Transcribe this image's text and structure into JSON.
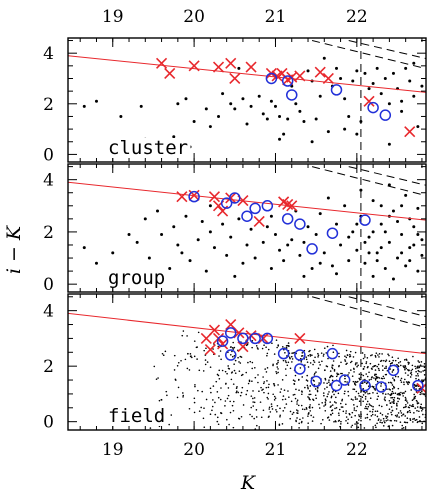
{
  "chart_data": {
    "type": "scatter",
    "xlabel": "K",
    "ylabel": "i − K",
    "xlim": [
      18.45,
      22.85
    ],
    "ylim": [
      -0.3,
      4.6
    ],
    "x_ticks": [
      19,
      20,
      21,
      22
    ],
    "x_tick_labels": [
      "19",
      "20",
      "21",
      "22"
    ],
    "y_ticks": [
      0,
      2,
      4
    ],
    "y_tick_labels": [
      "0",
      "2",
      "4"
    ],
    "ticks_top": true,
    "colors": {
      "cross": "#e8282d",
      "circle": "#2230d8",
      "line": "#e8282d",
      "dots": "#000000",
      "limit": "#000000"
    },
    "vertical_cut_K": 22.05,
    "red_sequence_line": {
      "x0": 18.45,
      "y0": 3.9,
      "x1": 22.85,
      "y1": 2.45
    },
    "panels": [
      {
        "label": "cluster",
        "crosses": [
          [
            19.6,
            3.6
          ],
          [
            19.7,
            3.2
          ],
          [
            20.0,
            3.5
          ],
          [
            20.3,
            3.45
          ],
          [
            20.45,
            3.6
          ],
          [
            20.5,
            3.0
          ],
          [
            20.7,
            3.45
          ],
          [
            20.95,
            3.2
          ],
          [
            21.02,
            3.1
          ],
          [
            21.08,
            3.2
          ],
          [
            21.15,
            2.95
          ],
          [
            21.2,
            3.05
          ],
          [
            21.3,
            3.1
          ],
          [
            21.55,
            3.25
          ],
          [
            21.65,
            3.0
          ],
          [
            22.15,
            2.1
          ],
          [
            22.65,
            0.9
          ]
        ],
        "circles": [
          [
            20.95,
            3.0
          ],
          [
            21.15,
            2.9
          ],
          [
            21.2,
            2.35
          ],
          [
            21.75,
            2.55
          ],
          [
            22.2,
            1.85
          ],
          [
            22.35,
            1.55
          ]
        ],
        "dots": [
          [
            18.65,
            1.9
          ],
          [
            18.8,
            2.1
          ],
          [
            19.1,
            1.5
          ],
          [
            19.35,
            1.9
          ],
          [
            19.4,
            0.6
          ],
          [
            19.75,
            0.7
          ],
          [
            19.9,
            2.2
          ],
          [
            19.95,
            0.3
          ],
          [
            20.0,
            1.3
          ],
          [
            20.15,
            1.8
          ],
          [
            20.2,
            1.1
          ],
          [
            20.3,
            1.5
          ],
          [
            20.35,
            2.4
          ],
          [
            20.45,
            2.0
          ],
          [
            20.5,
            1.8
          ],
          [
            20.6,
            2.2
          ],
          [
            20.65,
            1.2
          ],
          [
            20.7,
            1.9
          ],
          [
            20.8,
            2.3
          ],
          [
            20.85,
            1.6
          ],
          [
            20.9,
            1.4
          ],
          [
            20.95,
            2.1
          ],
          [
            21.0,
            1.9
          ],
          [
            21.05,
            1.5
          ],
          [
            21.1,
            0.8
          ],
          [
            21.15,
            1.4
          ],
          [
            21.2,
            2.7
          ],
          [
            21.25,
            2.0
          ],
          [
            21.3,
            1.7
          ],
          [
            21.35,
            1.3
          ],
          [
            21.4,
            3.3
          ],
          [
            21.45,
            2.9
          ],
          [
            21.5,
            1.4
          ],
          [
            21.55,
            2.3
          ],
          [
            21.6,
            3.8
          ],
          [
            21.65,
            0.9
          ],
          [
            21.7,
            2.7
          ],
          [
            21.75,
            3.4
          ],
          [
            21.8,
            3.0
          ],
          [
            21.85,
            2.2
          ],
          [
            21.9,
            1.5
          ],
          [
            21.95,
            2.9
          ],
          [
            22.0,
            3.3
          ],
          [
            22.05,
            1.3
          ],
          [
            22.1,
            3.2
          ],
          [
            22.15,
            2.6
          ],
          [
            22.2,
            2.8
          ],
          [
            22.25,
            3.4
          ],
          [
            22.3,
            2.4
          ],
          [
            22.35,
            3.0
          ],
          [
            22.4,
            2.0
          ],
          [
            22.45,
            3.2
          ],
          [
            22.5,
            2.6
          ],
          [
            22.55,
            1.7
          ],
          [
            22.6,
            3.4
          ],
          [
            22.65,
            2.9
          ],
          [
            22.7,
            2.3
          ],
          [
            22.75,
            1.1
          ],
          [
            22.8,
            2.7
          ],
          [
            21.05,
            0.6
          ],
          [
            20.55,
            3.4
          ],
          [
            22.4,
            0.4
          ],
          [
            22.7,
            3.6
          ],
          [
            21.85,
            1.0
          ],
          [
            22.55,
            2.1
          ],
          [
            21.45,
            0.5
          ],
          [
            22.0,
            0.8
          ],
          [
            19.8,
            2.0
          ]
        ]
      },
      {
        "label": "group",
        "crosses": [
          [
            19.85,
            3.35
          ],
          [
            20.0,
            3.4
          ],
          [
            20.25,
            3.35
          ],
          [
            20.3,
            3.0
          ],
          [
            20.35,
            2.8
          ],
          [
            20.45,
            3.3
          ],
          [
            20.6,
            3.2
          ],
          [
            20.8,
            2.4
          ],
          [
            21.1,
            3.15
          ],
          [
            21.15,
            3.05
          ],
          [
            21.2,
            3.0
          ]
        ],
        "circles": [
          [
            20.0,
            3.35
          ],
          [
            20.4,
            3.1
          ],
          [
            20.5,
            3.3
          ],
          [
            20.65,
            2.6
          ],
          [
            20.75,
            2.9
          ],
          [
            20.9,
            3.0
          ],
          [
            21.15,
            2.5
          ],
          [
            21.3,
            2.3
          ],
          [
            21.45,
            1.35
          ],
          [
            21.7,
            1.95
          ],
          [
            22.1,
            2.45
          ]
        ],
        "dots": [
          [
            18.65,
            1.4
          ],
          [
            18.8,
            0.8
          ],
          [
            19.0,
            1.2
          ],
          [
            19.1,
            0.4
          ],
          [
            19.2,
            1.9
          ],
          [
            19.3,
            1.6
          ],
          [
            19.4,
            2.5
          ],
          [
            19.45,
            1.0
          ],
          [
            19.55,
            2.8
          ],
          [
            19.6,
            1.9
          ],
          [
            19.7,
            0.6
          ],
          [
            19.75,
            2.2
          ],
          [
            19.8,
            1.5
          ],
          [
            19.9,
            2.6
          ],
          [
            19.95,
            0.9
          ],
          [
            20.05,
            1.7
          ],
          [
            20.1,
            2.4
          ],
          [
            20.15,
            0.5
          ],
          [
            20.2,
            2.0
          ],
          [
            20.25,
            1.4
          ],
          [
            20.35,
            2.3
          ],
          [
            20.4,
            1.1
          ],
          [
            20.45,
            1.8
          ],
          [
            20.55,
            2.5
          ],
          [
            20.6,
            0.8
          ],
          [
            20.65,
            1.5
          ],
          [
            20.7,
            2.1
          ],
          [
            20.75,
            1.0
          ],
          [
            20.85,
            1.6
          ],
          [
            20.9,
            2.2
          ],
          [
            20.95,
            0.6
          ],
          [
            21.0,
            1.9
          ],
          [
            21.05,
            1.3
          ],
          [
            21.1,
            0.9
          ],
          [
            21.2,
            1.7
          ],
          [
            21.25,
            2.8
          ],
          [
            21.3,
            1.1
          ],
          [
            21.35,
            1.6
          ],
          [
            21.4,
            2.2
          ],
          [
            21.45,
            0.6
          ],
          [
            21.5,
            1.9
          ],
          [
            21.55,
            2.7
          ],
          [
            21.6,
            1.2
          ],
          [
            21.65,
            3.3
          ],
          [
            21.7,
            0.7
          ],
          [
            21.75,
            2.3
          ],
          [
            21.8,
            1.5
          ],
          [
            21.85,
            3.0
          ],
          [
            21.9,
            0.9
          ],
          [
            21.95,
            2.0
          ],
          [
            22.0,
            1.3
          ],
          [
            22.05,
            2.6
          ],
          [
            22.1,
            0.8
          ],
          [
            22.15,
            1.8
          ],
          [
            22.2,
            3.2
          ],
          [
            22.25,
            1.2
          ],
          [
            22.3,
            2.3
          ],
          [
            22.35,
            0.6
          ],
          [
            22.4,
            1.6
          ],
          [
            22.45,
            2.8
          ],
          [
            22.5,
            1.0
          ],
          [
            22.55,
            1.9
          ],
          [
            22.6,
            3.4
          ],
          [
            22.65,
            1.4
          ],
          [
            22.7,
            2.2
          ],
          [
            22.75,
            0.5
          ],
          [
            22.8,
            1.7
          ],
          [
            22.2,
            0.3
          ],
          [
            22.45,
            0.2
          ],
          [
            22.3,
            1.4
          ],
          [
            22.55,
            1.2
          ],
          [
            22.65,
            0.9
          ],
          [
            22.35,
            2.0
          ],
          [
            22.75,
            1.9
          ],
          [
            22.15,
            1.2
          ],
          [
            22.5,
            2.4
          ],
          [
            22.8,
            1.1
          ],
          [
            22.05,
            3.6
          ],
          [
            22.25,
            0.9
          ],
          [
            22.6,
            0.7
          ],
          [
            22.4,
            2.6
          ],
          [
            22.7,
            1.5
          ],
          [
            21.9,
            1.8
          ],
          [
            22.0,
            2.3
          ],
          [
            22.1,
            1.6
          ],
          [
            22.2,
            2.0
          ],
          [
            22.3,
            3.0
          ],
          [
            22.4,
            3.8
          ],
          [
            22.55,
            3.0
          ],
          [
            22.65,
            2.5
          ],
          [
            22.75,
            2.9
          ],
          [
            21.75,
            0.4
          ],
          [
            21.55,
            0.8
          ],
          [
            21.35,
            0.3
          ],
          [
            21.15,
            1.5
          ],
          [
            20.95,
            2.6
          ],
          [
            20.5,
            0.3
          ],
          [
            20.2,
            3.0
          ],
          [
            19.85,
            1.2
          ]
        ]
      },
      {
        "label": "field",
        "crosses": [
          [
            20.15,
            3.0
          ],
          [
            20.2,
            2.6
          ],
          [
            20.25,
            3.3
          ],
          [
            20.3,
            3.0
          ],
          [
            20.35,
            2.8
          ],
          [
            20.45,
            3.5
          ],
          [
            20.55,
            3.2
          ],
          [
            20.6,
            2.7
          ],
          [
            20.7,
            3.1
          ],
          [
            20.85,
            3.0
          ],
          [
            21.3,
            3.0
          ],
          [
            22.8,
            1.2
          ]
        ],
        "circles": [
          [
            20.35,
            2.9
          ],
          [
            20.45,
            3.2
          ],
          [
            20.45,
            2.4
          ],
          [
            20.6,
            3.0
          ],
          [
            20.75,
            3.0
          ],
          [
            20.9,
            3.0
          ],
          [
            21.1,
            2.45
          ],
          [
            21.3,
            2.4
          ],
          [
            21.3,
            1.9
          ],
          [
            21.5,
            1.45
          ],
          [
            21.7,
            2.45
          ],
          [
            21.75,
            1.3
          ],
          [
            21.85,
            1.5
          ],
          [
            22.1,
            1.3
          ],
          [
            22.3,
            1.25
          ],
          [
            22.45,
            1.85
          ],
          [
            22.75,
            1.3
          ]
        ],
        "dots": []
      }
    ]
  }
}
